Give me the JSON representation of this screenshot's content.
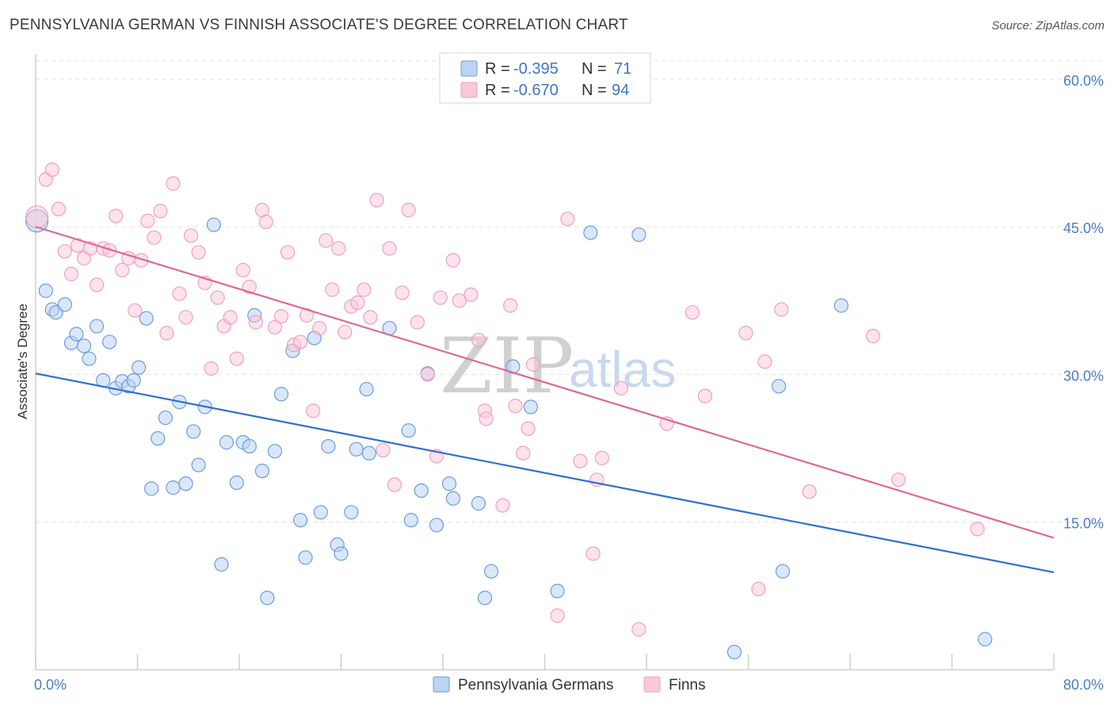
{
  "header": {
    "title": "PENNSYLVANIA GERMAN VS FINNISH ASSOCIATE'S DEGREE CORRELATION CHART",
    "source": "Source: ZipAtlas.com"
  },
  "legend_top": {
    "rows": [
      {
        "r_label": "R =",
        "r_value": "-0.395",
        "n_label": "N =",
        "n_value": "71"
      },
      {
        "r_label": "R =",
        "r_value": "-0.670",
        "n_label": "N =",
        "n_value": "94"
      }
    ]
  },
  "watermark": {
    "zip": "ZIP",
    "atlas": "atlas"
  },
  "chart_data": {
    "type": "scatter",
    "title": "PENNSYLVANIA GERMAN VS FINNISH ASSOCIATE'S DEGREE CORRELATION CHART",
    "xlabel": "",
    "ylabel": "Associate's Degree",
    "xlim": [
      0,
      80
    ],
    "ylim": [
      0,
      62
    ],
    "x_tick_labels": [
      "0.0%",
      "80.0%"
    ],
    "y_ticks": [
      15,
      30,
      45,
      60
    ],
    "y_tick_labels": [
      "15.0%",
      "30.0%",
      "45.0%",
      "60.0%"
    ],
    "grid": "horizontal dashed",
    "legend_position": "top-center and bottom",
    "colors": {
      "Pennsylvania Germans": "#6a9de0",
      "Finns": "#f0a0bc",
      "blue_line": "#2f6fd1",
      "pink_line": "#e06894"
    },
    "series": [
      {
        "name": "Pennsylvania Germans",
        "r": -0.395,
        "n": 71,
        "trend": {
          "x": [
            0,
            80
          ],
          "y": [
            30.1,
            9.9
          ]
        },
        "points": [
          [
            0.1,
            45.6
          ],
          [
            0.8,
            38.5
          ],
          [
            1.3,
            36.6
          ],
          [
            1.6,
            36.3
          ],
          [
            2.3,
            37.1
          ],
          [
            2.8,
            33.2
          ],
          [
            3.2,
            34.1
          ],
          [
            3.8,
            32.9
          ],
          [
            4.2,
            31.6
          ],
          [
            4.8,
            34.9
          ],
          [
            5.3,
            29.4
          ],
          [
            5.8,
            33.3
          ],
          [
            6.3,
            28.6
          ],
          [
            6.8,
            29.3
          ],
          [
            7.3,
            28.8
          ],
          [
            7.7,
            29.4
          ],
          [
            8.1,
            30.7
          ],
          [
            8.7,
            35.7
          ],
          [
            9.1,
            18.4
          ],
          [
            9.6,
            23.5
          ],
          [
            10.2,
            25.6
          ],
          [
            10.8,
            18.5
          ],
          [
            11.3,
            27.2
          ],
          [
            11.8,
            18.9
          ],
          [
            12.4,
            24.2
          ],
          [
            12.8,
            20.8
          ],
          [
            13.3,
            26.7
          ],
          [
            14.0,
            45.2
          ],
          [
            14.6,
            10.7
          ],
          [
            15.0,
            23.1
          ],
          [
            15.8,
            19.0
          ],
          [
            16.3,
            23.1
          ],
          [
            16.8,
            22.7
          ],
          [
            17.2,
            36.0
          ],
          [
            17.8,
            20.2
          ],
          [
            18.2,
            7.3
          ],
          [
            18.8,
            22.2
          ],
          [
            19.3,
            28.0
          ],
          [
            20.2,
            32.4
          ],
          [
            20.8,
            15.2
          ],
          [
            21.2,
            11.4
          ],
          [
            21.9,
            33.7
          ],
          [
            22.4,
            16.0
          ],
          [
            23.0,
            22.7
          ],
          [
            23.7,
            12.7
          ],
          [
            24.0,
            11.8
          ],
          [
            24.8,
            16.0
          ],
          [
            25.2,
            22.4
          ],
          [
            26.0,
            28.5
          ],
          [
            26.2,
            22.0
          ],
          [
            27.8,
            34.7
          ],
          [
            29.3,
            24.3
          ],
          [
            29.5,
            15.2
          ],
          [
            30.3,
            18.2
          ],
          [
            30.8,
            30.1
          ],
          [
            31.5,
            14.7
          ],
          [
            32.5,
            18.9
          ],
          [
            32.8,
            17.4
          ],
          [
            34.8,
            16.9
          ],
          [
            35.3,
            7.3
          ],
          [
            35.8,
            10.0
          ],
          [
            37.5,
            30.8
          ],
          [
            38.9,
            26.7
          ],
          [
            41.0,
            8.0
          ],
          [
            43.6,
            44.4
          ],
          [
            47.4,
            44.2
          ],
          [
            54.9,
            1.8
          ],
          [
            58.4,
            28.8
          ],
          [
            58.7,
            10.0
          ],
          [
            63.3,
            37.0
          ],
          [
            74.6,
            3.1
          ]
        ]
      },
      {
        "name": "Finns",
        "r": -0.67,
        "n": 94,
        "trend": {
          "x": [
            0,
            80
          ],
          "y": [
            45.0,
            13.4
          ]
        },
        "points": [
          [
            0.1,
            46.0
          ],
          [
            0.8,
            49.8
          ],
          [
            1.3,
            50.8
          ],
          [
            1.8,
            46.8
          ],
          [
            2.3,
            42.5
          ],
          [
            2.8,
            40.2
          ],
          [
            3.3,
            43.1
          ],
          [
            3.8,
            41.8
          ],
          [
            4.3,
            42.8
          ],
          [
            4.8,
            39.1
          ],
          [
            5.3,
            42.8
          ],
          [
            5.8,
            42.6
          ],
          [
            6.3,
            46.1
          ],
          [
            6.8,
            40.6
          ],
          [
            7.3,
            41.8
          ],
          [
            7.8,
            36.5
          ],
          [
            8.3,
            41.6
          ],
          [
            8.8,
            45.6
          ],
          [
            9.3,
            43.9
          ],
          [
            9.8,
            46.6
          ],
          [
            10.3,
            34.2
          ],
          [
            10.8,
            49.4
          ],
          [
            11.3,
            38.2
          ],
          [
            11.8,
            35.8
          ],
          [
            12.2,
            44.1
          ],
          [
            12.8,
            42.4
          ],
          [
            13.3,
            39.3
          ],
          [
            13.8,
            30.6
          ],
          [
            14.3,
            37.8
          ],
          [
            14.8,
            34.9
          ],
          [
            15.3,
            35.8
          ],
          [
            15.8,
            31.6
          ],
          [
            16.3,
            40.6
          ],
          [
            16.8,
            38.9
          ],
          [
            17.3,
            35.3
          ],
          [
            17.8,
            46.7
          ],
          [
            18.1,
            45.5
          ],
          [
            18.8,
            34.8
          ],
          [
            19.3,
            35.9
          ],
          [
            19.8,
            42.4
          ],
          [
            20.3,
            33.0
          ],
          [
            20.8,
            33.3
          ],
          [
            21.3,
            36.0
          ],
          [
            21.8,
            26.3
          ],
          [
            22.3,
            34.7
          ],
          [
            22.8,
            43.6
          ],
          [
            23.3,
            38.6
          ],
          [
            23.8,
            42.8
          ],
          [
            24.3,
            34.3
          ],
          [
            24.8,
            36.9
          ],
          [
            25.3,
            37.3
          ],
          [
            25.8,
            38.6
          ],
          [
            26.3,
            35.8
          ],
          [
            26.8,
            47.7
          ],
          [
            27.3,
            22.3
          ],
          [
            27.8,
            42.8
          ],
          [
            28.2,
            18.8
          ],
          [
            28.8,
            38.3
          ],
          [
            29.3,
            46.7
          ],
          [
            30.0,
            35.3
          ],
          [
            30.8,
            30.0
          ],
          [
            31.5,
            21.7
          ],
          [
            31.8,
            37.8
          ],
          [
            32.8,
            41.6
          ],
          [
            33.3,
            37.5
          ],
          [
            34.2,
            38.1
          ],
          [
            34.8,
            33.5
          ],
          [
            35.3,
            26.3
          ],
          [
            35.4,
            25.5
          ],
          [
            36.7,
            16.7
          ],
          [
            37.3,
            37.0
          ],
          [
            37.7,
            26.8
          ],
          [
            38.3,
            22.0
          ],
          [
            38.7,
            24.5
          ],
          [
            39.1,
            31.0
          ],
          [
            41.0,
            5.5
          ],
          [
            41.8,
            45.8
          ],
          [
            42.8,
            21.2
          ],
          [
            43.8,
            11.8
          ],
          [
            44.1,
            19.3
          ],
          [
            44.5,
            21.5
          ],
          [
            46.0,
            28.6
          ],
          [
            47.4,
            4.1
          ],
          [
            49.6,
            25.0
          ],
          [
            51.6,
            36.3
          ],
          [
            52.6,
            27.8
          ],
          [
            55.8,
            34.2
          ],
          [
            56.8,
            8.2
          ],
          [
            57.3,
            31.3
          ],
          [
            58.6,
            36.6
          ],
          [
            60.8,
            18.1
          ],
          [
            65.8,
            33.9
          ],
          [
            67.8,
            19.3
          ],
          [
            74.0,
            14.3
          ]
        ]
      }
    ]
  },
  "bottom_legend": {
    "items": [
      {
        "label": "Pennsylvania Germans"
      },
      {
        "label": "Finns"
      }
    ]
  }
}
